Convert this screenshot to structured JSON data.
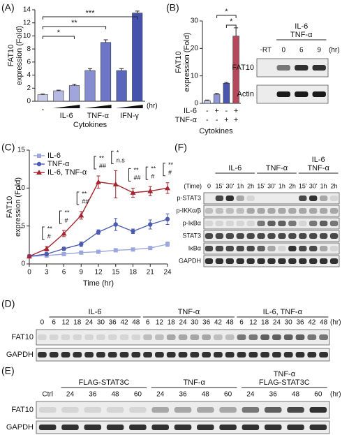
{
  "chart_data": [
    {
      "type": "bar",
      "panel": "(A)",
      "y_label": [
        "FAT10",
        "expression (Fold)"
      ],
      "x_label": "Cytokines",
      "unit": "(hr)",
      "categories": [
        "-",
        null,
        null,
        null,
        null,
        null,
        null
      ],
      "groups": [
        "IL-6",
        "TNF-α",
        "IFN-γ"
      ],
      "values": [
        1.0,
        1.6,
        2.4,
        4.7,
        9.0,
        4.7,
        13.5
      ],
      "errors": [
        0.1,
        0.1,
        0.2,
        0.3,
        0.4,
        0.3,
        0.3
      ],
      "colors": [
        "#c9cce9",
        "#b6bae3",
        "#a0a6db",
        "#858cd0",
        "#6d76c6",
        "#5a65bc",
        "#4553ae"
      ],
      "ylim": [
        0,
        14
      ],
      "yticks": [
        0,
        2,
        4,
        6,
        8,
        10,
        12,
        14
      ],
      "annotations": [
        "*",
        "**",
        "***"
      ]
    },
    {
      "type": "bar",
      "panel": "(B)",
      "y_label": [
        "FAT10",
        "expression (Fold)"
      ],
      "x_label": "Cytokines",
      "categories": [
        null,
        null,
        null,
        null
      ],
      "conditions": [
        {
          "name": "IL-6",
          "signs": [
            "-",
            "+",
            "-",
            "+"
          ]
        },
        {
          "name": "TNF-α",
          "signs": [
            "-",
            "-",
            "+",
            "+"
          ]
        }
      ],
      "values": [
        1.0,
        3.3,
        7.3,
        24.5
      ],
      "errors": [
        0.2,
        0.3,
        0.3,
        3.0
      ],
      "colors": [
        "#c5c9e8",
        "#8f97d6",
        "#4a56b0",
        "#b5485a"
      ],
      "ylim": [
        0,
        30
      ],
      "yticks": [
        0,
        10,
        20,
        30
      ],
      "annotations": [
        "*",
        "*"
      ]
    },
    {
      "type": "line",
      "panel": "(C)",
      "y_label": [
        "FAT10",
        "expression (Fold)"
      ],
      "x_label": "Time (hr)",
      "x": [
        0,
        3,
        6,
        9,
        12,
        15,
        18,
        21,
        24
      ],
      "series": [
        {
          "name": "IL-6",
          "color": "#9aa6dc",
          "marker": "square",
          "values": [
            1.0,
            1.1,
            1.3,
            1.5,
            1.6,
            1.8,
            1.9,
            2.1,
            2.6
          ],
          "errors": [
            0.1,
            0.1,
            0.1,
            0.1,
            0.2,
            0.2,
            0.2,
            0.2,
            0.3
          ]
        },
        {
          "name": "TNF-α",
          "color": "#4a5bb0",
          "marker": "circle",
          "values": [
            1.0,
            1.3,
            2.0,
            2.6,
            4.2,
            5.2,
            4.3,
            5.2,
            5.9
          ],
          "errors": [
            0.1,
            0.2,
            0.2,
            0.3,
            0.3,
            0.8,
            0.3,
            0.6,
            0.7
          ]
        },
        {
          "name": "IL-6, TNF-α",
          "color": "#a32630",
          "marker": "triangle",
          "values": [
            1.0,
            2.0,
            4.0,
            6.4,
            10.8,
            10.5,
            9.4,
            9.6,
            10.0
          ],
          "errors": [
            0.1,
            0.3,
            0.4,
            0.5,
            0.8,
            1.8,
            0.6,
            0.6,
            0.7
          ]
        }
      ],
      "annotations": [
        null,
        [
          "**",
          "#"
        ],
        [
          "**",
          "#"
        ],
        [
          "**",
          "##"
        ],
        [
          "**",
          "##"
        ],
        [
          "*",
          "n.s"
        ],
        [
          "**",
          "##"
        ],
        [
          "**",
          "#"
        ],
        [
          "**",
          "#"
        ]
      ],
      "xlim": [
        0,
        24
      ],
      "xticks": [
        0,
        3,
        6,
        9,
        12,
        15,
        18,
        21,
        24
      ],
      "ylim": [
        0,
        15
      ],
      "yticks": [
        0,
        5,
        10,
        15
      ],
      "legend": "top-left"
    }
  ],
  "blots": [
    {
      "groups": [
        [
          "IL-6",
          "TNF-α"
        ]
      ],
      "lanes": [
        "-RT",
        "0",
        "6",
        "9"
      ],
      "unit": "(hr)",
      "rows": [
        "FAT10",
        "Actin"
      ]
    },
    {
      "panel": "(D)",
      "groups": [
        [
          "IL-6"
        ],
        [
          "TNF-α"
        ],
        [
          "IL-6, TNF-α"
        ]
      ],
      "lanes": [
        "0",
        "6",
        "12",
        "18",
        "24",
        "30",
        "36",
        "42",
        "48",
        "6",
        "12",
        "18",
        "24",
        "30",
        "36",
        "42",
        "48",
        "6",
        "12",
        "18",
        "24",
        "30",
        "36",
        "42",
        "48"
      ],
      "unit": "(hr)",
      "rows": [
        "FAT10",
        "GAPDH"
      ]
    },
    {
      "panel": "(E)",
      "groups": [
        [
          "FLAG-STAT3C"
        ],
        [
          "TNF-α"
        ],
        [
          "TNF-α",
          "FLAG-STAT3C"
        ]
      ],
      "lanes": [
        "Ctrl",
        "24",
        "36",
        "48",
        "60",
        "24",
        "36",
        "48",
        "60",
        "24",
        "36",
        "48",
        "60"
      ],
      "unit": "(hr)",
      "rows": [
        "FAT10",
        "GAPDH"
      ]
    },
    {
      "panel": "(F)",
      "groups": [
        [
          "IL-6"
        ],
        [
          "TNF-α"
        ],
        [
          "IL-6",
          "TNF-α"
        ]
      ],
      "lane_header": "(Time)",
      "lanes": [
        "0",
        "15'",
        "30'",
        "1h",
        "2h",
        "15'",
        "30'",
        "1h",
        "2h",
        "15'",
        "30'",
        "1h",
        "2h"
      ],
      "rows": [
        "p-STAT3",
        "p-IKKα/β",
        "p-IκBα",
        "STAT3",
        "IκBα",
        "GAPDH"
      ]
    }
  ]
}
